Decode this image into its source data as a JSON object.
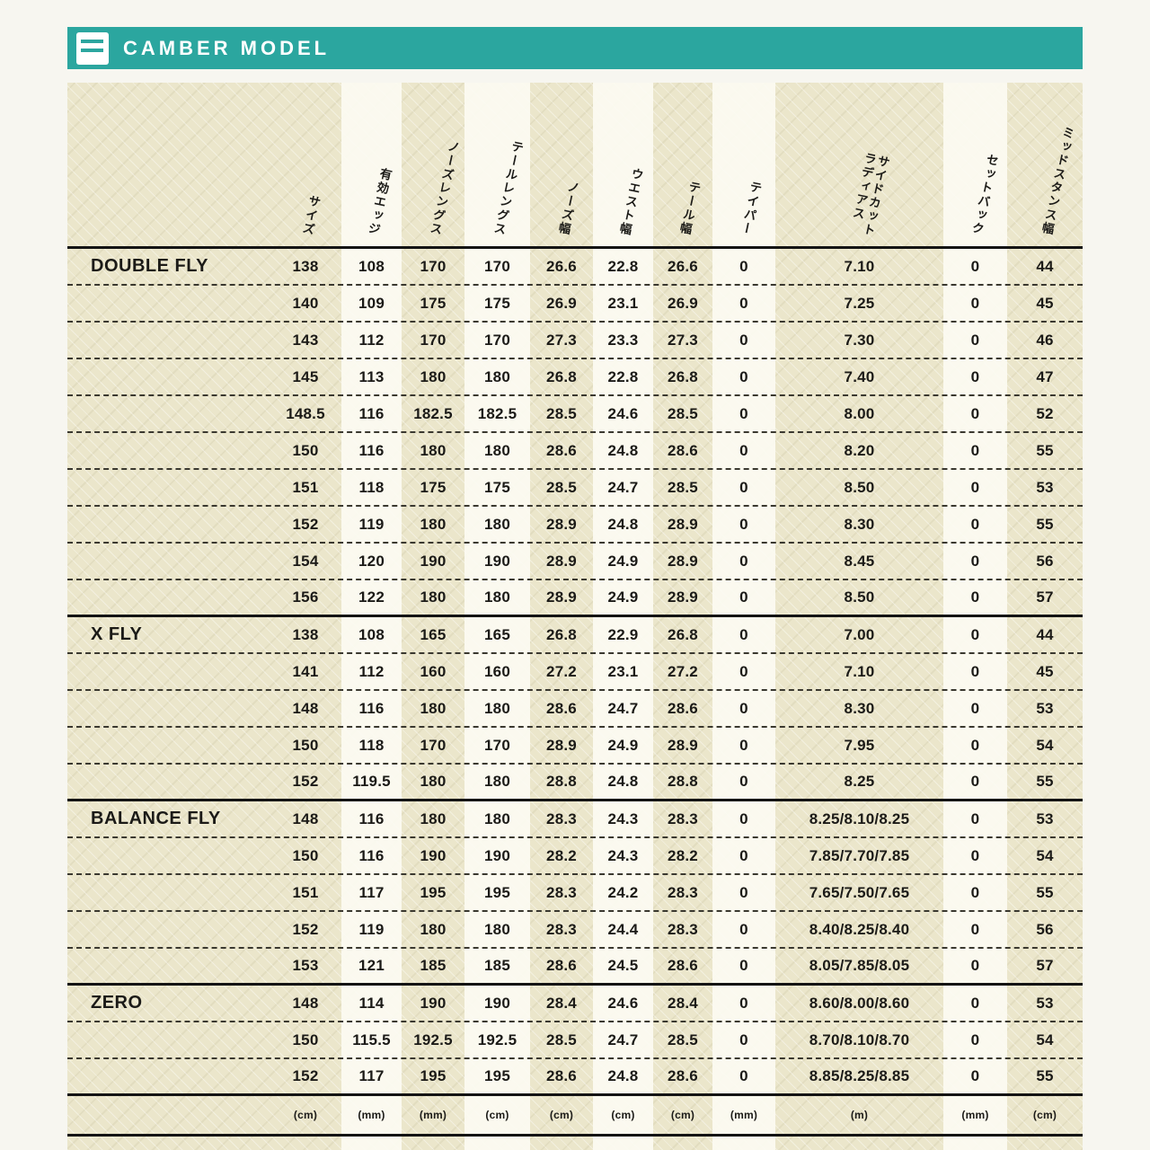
{
  "header": {
    "title": "CAMBER MODEL"
  },
  "colors": {
    "accent_teal": "#2ba69f",
    "paper_beige": "#ebe6cb",
    "column_stripe_white": "#fcfbf2",
    "text_ink": "#1b1a17"
  },
  "table": {
    "columns": [
      {
        "label": "サイズ",
        "unit": "(cm)"
      },
      {
        "label": "有効エッジ",
        "unit": "(mm)"
      },
      {
        "label": "ノーズレングス",
        "unit": "(mm)"
      },
      {
        "label": "テールレングス",
        "unit": "(cm)"
      },
      {
        "label": "ノーズ幅",
        "unit": "(cm)"
      },
      {
        "label": "ウエスト幅",
        "unit": "(cm)"
      },
      {
        "label": "テール幅",
        "unit": "(cm)"
      },
      {
        "label": "テイパー",
        "unit": "(mm)"
      },
      {
        "label": "サイドカット\nラディアス",
        "unit": "(m)"
      },
      {
        "label": "セットバック",
        "unit": "(mm)"
      },
      {
        "label": "ミッドスタンス幅",
        "unit": "(cm)"
      }
    ],
    "groups": [
      {
        "model": "DOUBLE FLY",
        "rows": [
          [
            "138",
            "108",
            "170",
            "170",
            "26.6",
            "22.8",
            "26.6",
            "0",
            "7.10",
            "0",
            "44"
          ],
          [
            "140",
            "109",
            "175",
            "175",
            "26.9",
            "23.1",
            "26.9",
            "0",
            "7.25",
            "0",
            "45"
          ],
          [
            "143",
            "112",
            "170",
            "170",
            "27.3",
            "23.3",
            "27.3",
            "0",
            "7.30",
            "0",
            "46"
          ],
          [
            "145",
            "113",
            "180",
            "180",
            "26.8",
            "22.8",
            "26.8",
            "0",
            "7.40",
            "0",
            "47"
          ],
          [
            "148.5",
            "116",
            "182.5",
            "182.5",
            "28.5",
            "24.6",
            "28.5",
            "0",
            "8.00",
            "0",
            "52"
          ],
          [
            "150",
            "116",
            "180",
            "180",
            "28.6",
            "24.8",
            "28.6",
            "0",
            "8.20",
            "0",
            "55"
          ],
          [
            "151",
            "118",
            "175",
            "175",
            "28.5",
            "24.7",
            "28.5",
            "0",
            "8.50",
            "0",
            "53"
          ],
          [
            "152",
            "119",
            "180",
            "180",
            "28.9",
            "24.8",
            "28.9",
            "0",
            "8.30",
            "0",
            "55"
          ],
          [
            "154",
            "120",
            "190",
            "190",
            "28.9",
            "24.9",
            "28.9",
            "0",
            "8.45",
            "0",
            "56"
          ],
          [
            "156",
            "122",
            "180",
            "180",
            "28.9",
            "24.9",
            "28.9",
            "0",
            "8.50",
            "0",
            "57"
          ]
        ]
      },
      {
        "model": "X FLY",
        "rows": [
          [
            "138",
            "108",
            "165",
            "165",
            "26.8",
            "22.9",
            "26.8",
            "0",
            "7.00",
            "0",
            "44"
          ],
          [
            "141",
            "112",
            "160",
            "160",
            "27.2",
            "23.1",
            "27.2",
            "0",
            "7.10",
            "0",
            "45"
          ],
          [
            "148",
            "116",
            "180",
            "180",
            "28.6",
            "24.7",
            "28.6",
            "0",
            "8.30",
            "0",
            "53"
          ],
          [
            "150",
            "118",
            "170",
            "170",
            "28.9",
            "24.9",
            "28.9",
            "0",
            "7.95",
            "0",
            "54"
          ],
          [
            "152",
            "119.5",
            "180",
            "180",
            "28.8",
            "24.8",
            "28.8",
            "0",
            "8.25",
            "0",
            "55"
          ]
        ]
      },
      {
        "model": "BALANCE FLY",
        "rows": [
          [
            "148",
            "116",
            "180",
            "180",
            "28.3",
            "24.3",
            "28.3",
            "0",
            "8.25/8.10/8.25",
            "0",
            "53"
          ],
          [
            "150",
            "116",
            "190",
            "190",
            "28.2",
            "24.3",
            "28.2",
            "0",
            "7.85/7.70/7.85",
            "0",
            "54"
          ],
          [
            "151",
            "117",
            "195",
            "195",
            "28.3",
            "24.2",
            "28.3",
            "0",
            "7.65/7.50/7.65",
            "0",
            "55"
          ],
          [
            "152",
            "119",
            "180",
            "180",
            "28.3",
            "24.4",
            "28.3",
            "0",
            "8.40/8.25/8.40",
            "0",
            "56"
          ],
          [
            "153",
            "121",
            "185",
            "185",
            "28.6",
            "24.5",
            "28.6",
            "0",
            "8.05/7.85/8.05",
            "0",
            "57"
          ]
        ]
      },
      {
        "model": "ZERO",
        "rows": [
          [
            "148",
            "114",
            "190",
            "190",
            "28.4",
            "24.6",
            "28.4",
            "0",
            "8.60/8.00/8.60",
            "0",
            "53"
          ],
          [
            "150",
            "115.5",
            "192.5",
            "192.5",
            "28.5",
            "24.7",
            "28.5",
            "0",
            "8.70/8.10/8.70",
            "0",
            "54"
          ],
          [
            "152",
            "117",
            "195",
            "195",
            "28.6",
            "24.8",
            "28.6",
            "0",
            "8.85/8.25/8.85",
            "0",
            "55"
          ]
        ]
      }
    ]
  }
}
